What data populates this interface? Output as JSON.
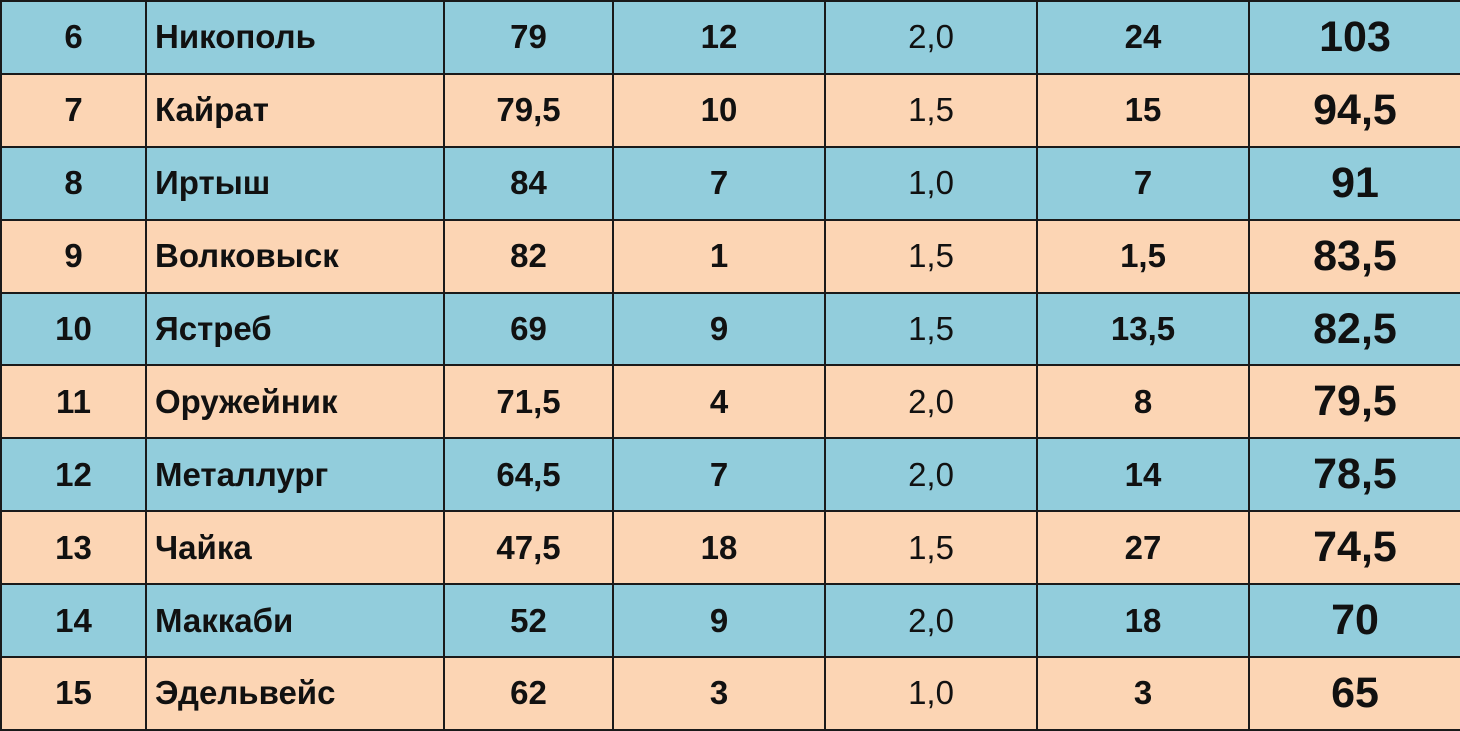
{
  "table": {
    "rows": [
      [
        "6",
        "Никополь",
        "79",
        "12",
        "2,0",
        "24",
        "103"
      ],
      [
        "7",
        "Кайрат",
        "79,5",
        "10",
        "1,5",
        "15",
        "94,5"
      ],
      [
        "8",
        "Иртыш",
        "84",
        "7",
        "1,0",
        "7",
        "91"
      ],
      [
        "9",
        "Волковыск",
        "82",
        "1",
        "1,5",
        "1,5",
        "83,5"
      ],
      [
        "10",
        "Ястреб",
        "69",
        "9",
        "1,5",
        "13,5",
        "82,5"
      ],
      [
        "11",
        "Оружейник",
        "71,5",
        "4",
        "2,0",
        "8",
        "79,5"
      ],
      [
        "12",
        "Металлург",
        "64,5",
        "7",
        "2,0",
        "14",
        "78,5"
      ],
      [
        "13",
        "Чайка",
        "47,5",
        "18",
        "1,5",
        "27",
        "74,5"
      ],
      [
        "14",
        "Маккаби",
        "52",
        "9",
        "2,0",
        "18",
        "70"
      ],
      [
        "15",
        "Эдельвейс",
        "62",
        "3",
        "1,0",
        "3",
        "65"
      ]
    ]
  }
}
